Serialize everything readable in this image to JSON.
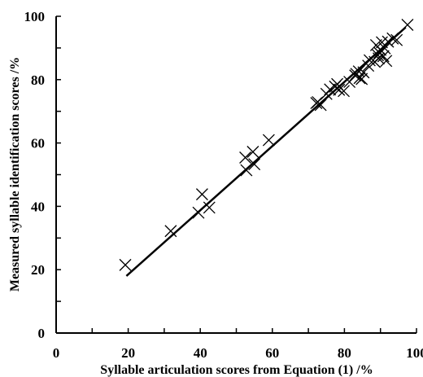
{
  "chart_data": {
    "type": "scatter",
    "title": "",
    "xlabel": "Syllable articulation scores from Equation (1) /%",
    "ylabel": "Measured syllable identification scores /%",
    "xlim": [
      0,
      100
    ],
    "ylim": [
      0,
      100
    ],
    "x_ticks": [
      "0",
      "20",
      "40",
      "60",
      "80",
      "100"
    ],
    "y_ticks": [
      "0",
      "20",
      "40",
      "60",
      "80",
      "100"
    ],
    "grid": false,
    "legend": "none",
    "marker": "x",
    "series": [
      {
        "points": [
          [
            19.2,
            21.5
          ],
          [
            31.8,
            32.2
          ],
          [
            39.5,
            38.0
          ],
          [
            40.5,
            43.8
          ],
          [
            42.5,
            39.6
          ],
          [
            52.5,
            55.4
          ],
          [
            52.8,
            51.4
          ],
          [
            54.6,
            57.2
          ],
          [
            55.0,
            53.3
          ],
          [
            59.0,
            60.9
          ],
          [
            72.2,
            72.6
          ],
          [
            72.6,
            72.9
          ],
          [
            73.4,
            72.0
          ],
          [
            75.0,
            75.5
          ],
          [
            76.0,
            76.9
          ],
          [
            77.4,
            77.8
          ],
          [
            78.0,
            78.6
          ],
          [
            78.5,
            76.8
          ],
          [
            79.8,
            76.4
          ],
          [
            81.4,
            79.3
          ],
          [
            83.0,
            81.3
          ],
          [
            83.3,
            81.8
          ],
          [
            84.0,
            82.6
          ],
          [
            84.2,
            80.5
          ],
          [
            84.8,
            80.2
          ],
          [
            85.3,
            82.3
          ],
          [
            86.6,
            84.4
          ],
          [
            87.0,
            86.1
          ],
          [
            88.4,
            85.6
          ],
          [
            88.8,
            90.9
          ],
          [
            89.3,
            87.7
          ],
          [
            89.5,
            86.7
          ],
          [
            89.7,
            88.5
          ],
          [
            90.0,
            89.4
          ],
          [
            90.4,
            91.8
          ],
          [
            90.8,
            87.4
          ],
          [
            91.2,
            89.9
          ],
          [
            91.6,
            85.9
          ],
          [
            92.1,
            92.0
          ],
          [
            93.4,
            93.0
          ],
          [
            94.5,
            92.5
          ],
          [
            97.5,
            97.3
          ]
        ],
        "color": "#000000"
      }
    ],
    "fit_line": {
      "x": [
        19.5,
        97.0
      ],
      "y": [
        18.0,
        96.5
      ]
    }
  }
}
